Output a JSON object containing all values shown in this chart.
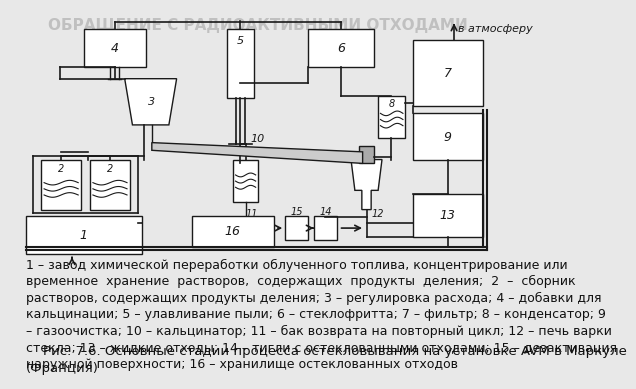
{
  "title": "ОБРАЩЕНИЕ С РАДИОАКТИВНЫМИ ОТХОДАМИ",
  "title_color": "#c0c0c0",
  "title_fontsize": 11,
  "bg_color": "#e8e8e8",
  "caption_text": "1 – завод химической переработки облученного топлива, концентрирование или\nвременное  хранение  растворов,  содержащих  продукты  деления;  2  –  сборник\nрастворов, содержащих продукты деления; 3 – регулировка расхода; 4 – добавки для\nкальцинации; 5 – улавливание пыли; 6 – стеклофритта; 7 – фильтр; 8 – конденсатор; 9\n– газоочистка; 10 – кальцинатор; 11 – бак возврата на повторный цикл; 12 – печь варки\nстекла; 13 – жидкие отходы; 14 – тигли с остеклованными отходами; 15 – дезактивация\nнаружной поверхности; 16 – хранилище остеклованных отходов",
  "fig_caption": "    Рис. 7.6. Основные стадии процесса остекловывания на установке AVM в Маркуле\n(Франция)",
  "fig_caption_fontsize": 9.5,
  "vatmos_text": "в атмосферу",
  "line_color": "#1a1a1a",
  "fill_color": "#ffffff",
  "caption_fontsize": 9.0
}
